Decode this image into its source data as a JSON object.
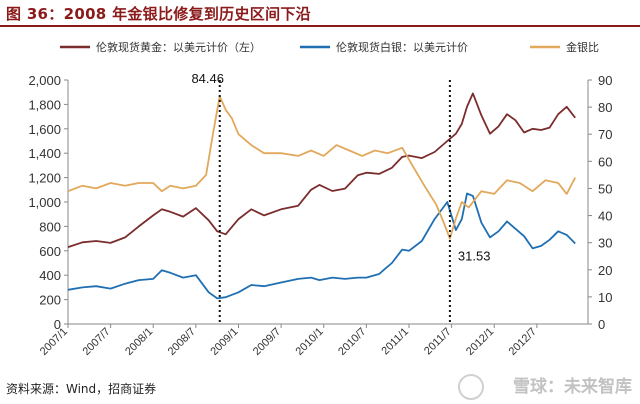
{
  "figure_title": "图 36：2008 年金银比修复到历史区间下沿",
  "source_note": "资料来源：Wind，招商证券",
  "watermark_text": "雪球：未来智库",
  "chart_data": {
    "type": "line",
    "legend": {
      "position": "top",
      "entries": [
        {
          "label": "伦敦现货黄金：以美元计价（左）",
          "color": "#7b2d2d"
        },
        {
          "label": "伦敦现货白银：以美元计价",
          "color": "#1f6fb2"
        },
        {
          "label": "金银比",
          "color": "#e2a85c"
        }
      ]
    },
    "x_tick_labels": [
      "2007/1",
      "2007/7",
      "2008/1",
      "2008/7",
      "2009/1",
      "2009/7",
      "2010/1",
      "2010/7",
      "2011/1",
      "2011/7",
      "2012/1",
      "2012/7"
    ],
    "left_axis": {
      "ylim": [
        0,
        2000
      ],
      "ticks": [
        "0",
        "200",
        "400",
        "600",
        "800",
        "1,000",
        "1,200",
        "1,400",
        "1,600",
        "1,800",
        "2,000"
      ]
    },
    "right_axis": {
      "ylim": [
        0,
        90
      ],
      "ticks": [
        "0",
        "10",
        "20",
        "30",
        "40",
        "50",
        "60",
        "70",
        "80",
        "90"
      ]
    },
    "series": [
      {
        "name": "伦敦现货黄金：以美元计价（左）",
        "axis": "left",
        "color": "#7b2d2d",
        "x": [
          2007.0,
          2007.17,
          2007.33,
          2007.5,
          2007.67,
          2007.83,
          2008.0,
          2008.1,
          2008.2,
          2008.35,
          2008.5,
          2008.65,
          2008.75,
          2008.85,
          2009.0,
          2009.15,
          2009.3,
          2009.5,
          2009.7,
          2009.85,
          2009.95,
          2010.1,
          2010.25,
          2010.4,
          2010.5,
          2010.65,
          2010.8,
          2010.92,
          2011.0,
          2011.15,
          2011.3,
          2011.45,
          2011.55,
          2011.62,
          2011.68,
          2011.75,
          2011.85,
          2011.95,
          2012.05,
          2012.15,
          2012.25,
          2012.35,
          2012.45,
          2012.55,
          2012.65,
          2012.75,
          2012.85,
          2012.95
        ],
        "y": [
          630,
          670,
          680,
          665,
          710,
          800,
          890,
          940,
          920,
          880,
          950,
          850,
          760,
          735,
          860,
          940,
          890,
          940,
          970,
          1100,
          1140,
          1090,
          1110,
          1220,
          1240,
          1230,
          1280,
          1370,
          1380,
          1360,
          1410,
          1500,
          1560,
          1640,
          1780,
          1890,
          1710,
          1560,
          1620,
          1720,
          1670,
          1570,
          1600,
          1590,
          1610,
          1720,
          1780,
          1690
        ]
      },
      {
        "name": "伦敦现货白银：以美元计价",
        "axis": "left",
        "color": "#1f6fb2",
        "x": [
          2007.0,
          2007.17,
          2007.33,
          2007.5,
          2007.67,
          2007.83,
          2008.0,
          2008.1,
          2008.2,
          2008.35,
          2008.5,
          2008.65,
          2008.75,
          2008.85,
          2009.0,
          2009.15,
          2009.3,
          2009.5,
          2009.7,
          2009.85,
          2009.95,
          2010.1,
          2010.25,
          2010.4,
          2010.5,
          2010.65,
          2010.8,
          2010.92,
          2011.0,
          2011.15,
          2011.3,
          2011.45,
          2011.55,
          2011.62,
          2011.68,
          2011.75,
          2011.85,
          2011.95,
          2012.05,
          2012.15,
          2012.25,
          2012.35,
          2012.45,
          2012.55,
          2012.65,
          2012.75,
          2012.85,
          2012.95
        ],
        "y": [
          280,
          300,
          310,
          290,
          330,
          360,
          370,
          440,
          420,
          380,
          400,
          260,
          210,
          220,
          260,
          320,
          310,
          340,
          370,
          380,
          360,
          380,
          370,
          380,
          380,
          410,
          500,
          610,
          600,
          680,
          860,
          1000,
          770,
          860,
          1070,
          1050,
          830,
          710,
          760,
          840,
          780,
          720,
          620,
          640,
          690,
          760,
          730,
          660
        ]
      },
      {
        "name": "金银比",
        "axis": "right",
        "color": "#e2a85c",
        "x": [
          2007.0,
          2007.17,
          2007.33,
          2007.5,
          2007.67,
          2007.83,
          2008.0,
          2008.1,
          2008.2,
          2008.35,
          2008.5,
          2008.62,
          2008.7,
          2008.78,
          2008.85,
          2008.92,
          2009.0,
          2009.15,
          2009.3,
          2009.5,
          2009.7,
          2009.85,
          2010.0,
          2010.15,
          2010.3,
          2010.45,
          2010.6,
          2010.75,
          2010.92,
          2011.05,
          2011.2,
          2011.32,
          2011.4,
          2011.48,
          2011.55,
          2011.62,
          2011.7,
          2011.85,
          2012.0,
          2012.15,
          2012.3,
          2012.45,
          2012.6,
          2012.75,
          2012.85,
          2012.95
        ],
        "y": [
          49,
          51,
          50,
          52,
          51,
          52,
          52,
          49,
          51,
          50,
          51,
          55,
          70,
          84,
          79,
          76,
          70,
          66,
          63,
          63,
          62,
          64,
          62,
          66,
          64,
          62,
          64,
          63,
          65,
          58,
          50,
          44,
          38,
          31.5,
          39,
          45,
          43,
          49,
          48,
          53,
          52,
          49,
          53,
          52,
          48,
          54
        ]
      }
    ],
    "annotations": [
      {
        "text": "84.46",
        "x": 2008.78,
        "y": 84.46,
        "axis": "right"
      },
      {
        "text": "31.53",
        "x": 2011.48,
        "y": 31.53,
        "axis": "right"
      }
    ],
    "reference_lines": [
      {
        "x": 2008.78,
        "style": "dotted"
      },
      {
        "x": 2011.48,
        "style": "dotted"
      }
    ]
  }
}
